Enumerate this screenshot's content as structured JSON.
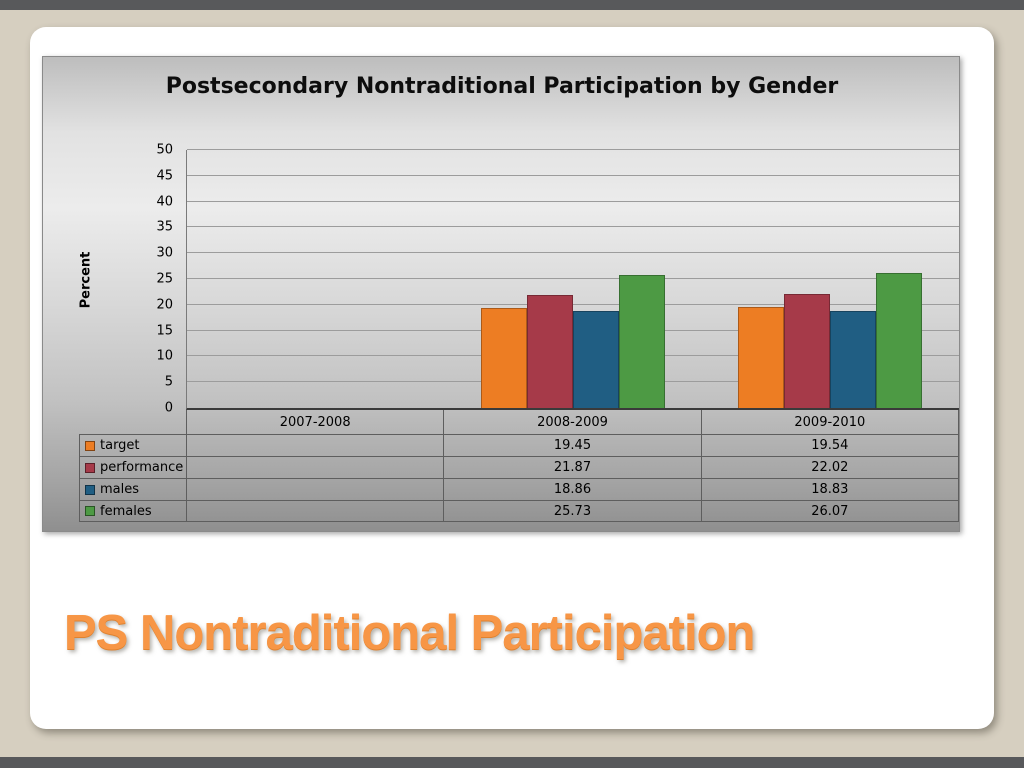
{
  "slide": {
    "title": "PS Nontraditional Participation",
    "accent_color": "#f79646"
  },
  "chart_data": {
    "type": "bar",
    "title": "Postsecondary Nontraditional Participation by Gender",
    "xlabel": "",
    "ylabel": "Percent",
    "ylim": [
      0,
      50
    ],
    "ytick_step": 5,
    "grid": true,
    "legend_position": "table-left",
    "categories": [
      "2007-2008",
      "2008-2009",
      "2009-2010"
    ],
    "series": [
      {
        "name": "target",
        "color": "#ed7d23",
        "values": [
          null,
          19.45,
          19.54
        ]
      },
      {
        "name": "performance",
        "color": "#a63a49",
        "values": [
          null,
          21.87,
          22.02
        ]
      },
      {
        "name": "males",
        "color": "#205e83",
        "values": [
          null,
          18.86,
          18.83
        ]
      },
      {
        "name": "females",
        "color": "#4d9a44",
        "values": [
          null,
          25.73,
          26.07
        ]
      }
    ]
  }
}
